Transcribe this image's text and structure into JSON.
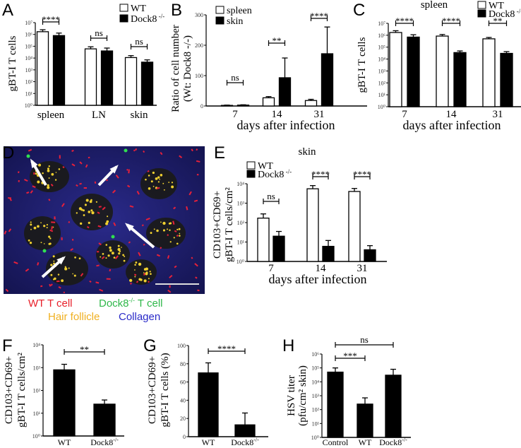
{
  "figure": {
    "panel_letters": [
      "A",
      "B",
      "C",
      "D",
      "E",
      "F",
      "G",
      "H"
    ],
    "colors": {
      "wt_fill": "#ffffff",
      "dock8_fill": "#000000",
      "wt_t_cell": "#e8202a",
      "dock8_t_cell": "#2fb84a",
      "hair_follicle": "#f0b020",
      "collagen": "#2a2ac8"
    },
    "panel_d": {
      "image_description_icon": "fluorescence-micrograph",
      "labels": {
        "wt_t_cell": "WT T cell",
        "dock8_prefix": "Dock8",
        "dock8_sup": "-/-",
        "dock8_suffix": " T cell",
        "hair_follicle": "Hair follicle",
        "collagen": "Collagen"
      }
    }
  },
  "chart_data": [
    {
      "id": "A",
      "type": "bar",
      "scale": "log",
      "ylim": [
        1,
        10000000
      ],
      "ylabel": [
        "gBT-I T cells"
      ],
      "xlabel": "",
      "title": "",
      "yticks": [
        "10⁰",
        "10¹",
        "10²",
        "10³",
        "10⁴",
        "10⁵",
        "10⁶",
        "10⁷"
      ],
      "categories": [
        "spleen",
        "LN",
        "skin"
      ],
      "legend": [
        {
          "name": "WT",
          "sup": ""
        },
        {
          "name": "Dock8",
          "sup": "-/-"
        }
      ],
      "series": [
        {
          "name": "WT",
          "values": [
            1700000,
            60000,
            11000
          ],
          "err": [
            2500000,
            90000,
            16000
          ]
        },
        {
          "name": "Dock8-/-",
          "values": [
            800000,
            40000,
            4500
          ],
          "err": [
            1300000,
            70000,
            7000
          ]
        }
      ],
      "significance": [
        {
          "group": 0,
          "label": "****"
        },
        {
          "group": 1,
          "label": "ns"
        },
        {
          "group": 2,
          "label": "ns"
        }
      ]
    },
    {
      "id": "B",
      "type": "bar",
      "scale": "linear",
      "ylim": [
        0,
        300
      ],
      "ylabel": [
        "Ratio of cell number",
        "(Wt: Dock8 -/-)"
      ],
      "xlabel": "days after infection",
      "title": "",
      "yticks": [
        "0",
        "100",
        "200",
        "300"
      ],
      "categories": [
        "7",
        "14",
        "31"
      ],
      "legend": [
        {
          "name": "spleen",
          "sup": ""
        },
        {
          "name": "skin",
          "sup": ""
        }
      ],
      "series": [
        {
          "name": "spleen",
          "values": [
            2,
            27,
            18
          ],
          "err": [
            3,
            31,
            22
          ]
        },
        {
          "name": "skin",
          "values": [
            3,
            93,
            172
          ],
          "err": [
            4,
            158,
            260
          ]
        }
      ],
      "significance": [
        {
          "group": 0,
          "label": "ns"
        },
        {
          "group": 1,
          "label": "**"
        },
        {
          "group": 2,
          "label": "****"
        }
      ]
    },
    {
      "id": "C",
      "type": "bar",
      "scale": "log",
      "ylim": [
        1,
        10000000
      ],
      "ylabel": [
        "gBT-I T cells"
      ],
      "xlabel": "days after infection",
      "title": "spleen",
      "yticks": [
        "10⁰",
        "10¹",
        "10²",
        "10³",
        "10⁴",
        "10⁵",
        "10⁶",
        "10⁷"
      ],
      "categories": [
        "7",
        "14",
        "31"
      ],
      "legend": [
        {
          "name": "WT",
          "sup": ""
        },
        {
          "name": "Dock8",
          "sup": "-/-"
        }
      ],
      "series": [
        {
          "name": "WT",
          "values": [
            1700000,
            850000,
            500000
          ],
          "err": [
            2400000,
            1150000,
            650000
          ]
        },
        {
          "name": "Dock8-/-",
          "values": [
            700000,
            35000,
            30000
          ],
          "err": [
            1100000,
            48000,
            42000
          ]
        }
      ],
      "significance": [
        {
          "group": 0,
          "label": "****"
        },
        {
          "group": 1,
          "label": "****"
        },
        {
          "group": 2,
          "label": "**"
        }
      ]
    },
    {
      "id": "E",
      "type": "bar",
      "scale": "log",
      "ylim": [
        1,
        10000
      ],
      "ylabel": [
        "CD103+CD69+",
        "gBT-I T cells/cm²"
      ],
      "xlabel": "days after infection",
      "title": "skin",
      "yticks": [
        "10⁰",
        "10¹",
        "10²",
        "10³",
        "10⁴"
      ],
      "categories": [
        "7",
        "14",
        "31"
      ],
      "legend": [
        {
          "name": "WT",
          "sup": ""
        },
        {
          "name": "Dock8",
          "sup": "-/-"
        }
      ],
      "series": [
        {
          "name": "WT",
          "values": [
            170,
            5500,
            4000
          ],
          "err": [
            280,
            8000,
            5700
          ]
        },
        {
          "name": "Dock8-/-",
          "values": [
            20,
            6,
            4
          ],
          "err": [
            35,
            12,
            6.5
          ]
        }
      ],
      "significance": [
        {
          "group": 0,
          "label": "ns"
        },
        {
          "group": 1,
          "label": "****"
        },
        {
          "group": 2,
          "label": "****"
        }
      ]
    },
    {
      "id": "F",
      "type": "bar",
      "scale": "log",
      "ylim": [
        1,
        10000
      ],
      "ylabel": [
        "CD103+CD69+",
        "gBT-I T cells/cm²"
      ],
      "xlabel": "",
      "title": "",
      "yticks": [
        "10⁰",
        "10¹",
        "10²",
        "10³",
        "10⁴"
      ],
      "categories": [
        {
          "name": "WT",
          "sup": ""
        },
        {
          "name": "Dock8",
          "sup": "-/-"
        }
      ],
      "series": [
        {
          "values": [
            800,
            25
          ],
          "err": [
            1400,
            38
          ]
        }
      ],
      "significance": [
        {
          "from": 0,
          "to": 1,
          "label": "**"
        }
      ]
    },
    {
      "id": "G",
      "type": "bar",
      "scale": "linear",
      "ylim": [
        0,
        100
      ],
      "ylabel": [
        "CD103+CD69+",
        "gBT-I T cells (%)"
      ],
      "xlabel": "",
      "title": "",
      "yticks": [
        "0",
        "20",
        "40",
        "60",
        "80",
        "100"
      ],
      "categories": [
        {
          "name": "WT",
          "sup": ""
        },
        {
          "name": "Dock8",
          "sup": "-/-"
        }
      ],
      "series": [
        {
          "values": [
            70,
            13
          ],
          "err": [
            81,
            26
          ]
        }
      ],
      "significance": [
        {
          "from": 0,
          "to": 1,
          "label": "****"
        }
      ]
    },
    {
      "id": "H",
      "type": "bar",
      "scale": "log",
      "ylim": [
        1,
        1000000
      ],
      "ylabel": [
        "HSV titer",
        "(pfu/cm² skin)"
      ],
      "xlabel": "",
      "title": "",
      "yticks": [
        "10⁰",
        "10¹",
        "10²",
        "10³",
        "10⁴",
        "10⁵",
        "10⁶"
      ],
      "categories": [
        {
          "name": "Control",
          "sup": ""
        },
        {
          "name": "WT",
          "sup": ""
        },
        {
          "name": "Dock8",
          "sup": "-/-"
        }
      ],
      "series": [
        {
          "values": [
            50000,
            250,
            30000
          ],
          "err": [
            100000,
            700,
            80000
          ]
        }
      ],
      "significance": [
        {
          "from": 0,
          "to": 1,
          "label": "***"
        },
        {
          "from": 0,
          "to": 2,
          "label": "ns"
        }
      ]
    }
  ]
}
